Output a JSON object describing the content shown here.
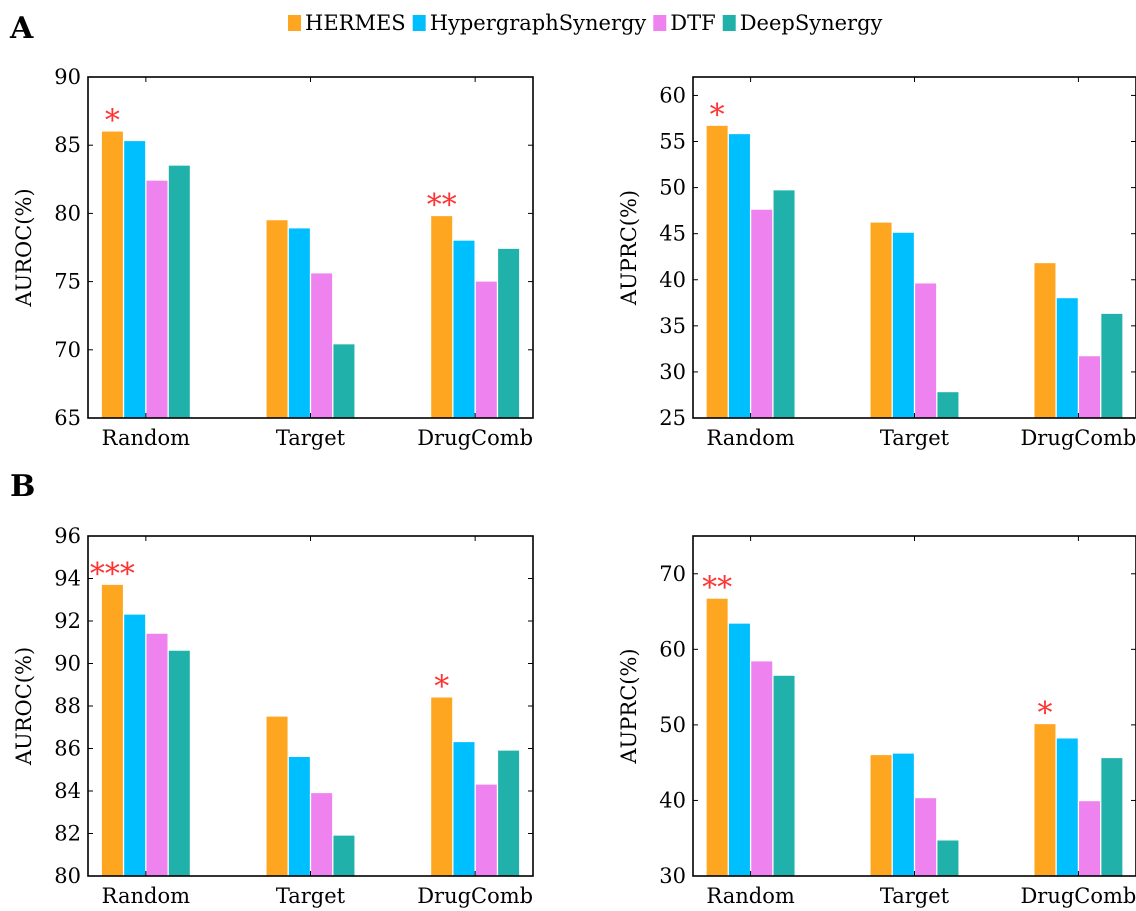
{
  "panels": [
    "A",
    "B"
  ],
  "legend": [
    {
      "label": "HERMES",
      "color": "#FFA620"
    },
    {
      "label": "HypergraphSynergy",
      "color": "#00BFFF"
    },
    {
      "label": "DTF",
      "color": "#EE82EE"
    },
    {
      "label": "DeepSynergy",
      "color": "#20B2AA"
    }
  ],
  "significance_color": "#FF3333",
  "chart_data": [
    {
      "type": "bar",
      "panel": "A",
      "ylabel": "AUROC(%)",
      "categories": [
        "Random",
        "Target",
        "DrugComb"
      ],
      "ylim": [
        65,
        90
      ],
      "yticks": [
        65,
        70,
        75,
        80,
        85,
        90
      ],
      "grid": false,
      "series": [
        {
          "name": "HERMES",
          "values": [
            86.0,
            79.5,
            79.8
          ]
        },
        {
          "name": "HypergraphSynergy",
          "values": [
            85.3,
            78.9,
            78.0
          ]
        },
        {
          "name": "DTF",
          "values": [
            82.4,
            75.6,
            75.0
          ]
        },
        {
          "name": "DeepSynergy",
          "values": [
            83.5,
            70.4,
            77.4
          ]
        }
      ],
      "annotations": [
        "*",
        "",
        "**"
      ]
    },
    {
      "type": "bar",
      "panel": "A",
      "ylabel": "AUPRC(%)",
      "categories": [
        "Random",
        "Target",
        "DrugComb"
      ],
      "ylim": [
        25,
        62
      ],
      "yticks": [
        25,
        30,
        35,
        40,
        45,
        50,
        55,
        60
      ],
      "grid": false,
      "series": [
        {
          "name": "HERMES",
          "values": [
            56.7,
            46.2,
            41.8
          ]
        },
        {
          "name": "HypergraphSynergy",
          "values": [
            55.8,
            45.1,
            38.0
          ]
        },
        {
          "name": "DTF",
          "values": [
            47.6,
            39.6,
            31.7
          ]
        },
        {
          "name": "DeepSynergy",
          "values": [
            49.7,
            27.8,
            36.3
          ]
        }
      ],
      "annotations": [
        "*",
        "",
        ""
      ]
    },
    {
      "type": "bar",
      "panel": "B",
      "ylabel": "AUROC(%)",
      "categories": [
        "Random",
        "Target",
        "DrugComb"
      ],
      "ylim": [
        80,
        96
      ],
      "yticks": [
        80,
        82,
        84,
        86,
        88,
        90,
        92,
        94,
        96
      ],
      "grid": false,
      "series": [
        {
          "name": "HERMES",
          "values": [
            93.7,
            87.5,
            88.4
          ]
        },
        {
          "name": "HypergraphSynergy",
          "values": [
            92.3,
            85.6,
            86.3
          ]
        },
        {
          "name": "DTF",
          "values": [
            91.4,
            83.9,
            84.3
          ]
        },
        {
          "name": "DeepSynergy",
          "values": [
            90.6,
            81.9,
            85.9
          ]
        }
      ],
      "annotations": [
        "***",
        "",
        "*"
      ]
    },
    {
      "type": "bar",
      "panel": "B",
      "ylabel": "AUPRC(%)",
      "categories": [
        "Random",
        "Target",
        "DrugComb"
      ],
      "ylim": [
        30,
        75
      ],
      "yticks": [
        30,
        40,
        50,
        60,
        70
      ],
      "grid": false,
      "series": [
        {
          "name": "HERMES",
          "values": [
            66.7,
            46.0,
            50.1
          ]
        },
        {
          "name": "HypergraphSynergy",
          "values": [
            63.4,
            46.2,
            48.2
          ]
        },
        {
          "name": "DTF",
          "values": [
            58.4,
            40.3,
            39.9
          ]
        },
        {
          "name": "DeepSynergy",
          "values": [
            56.5,
            34.7,
            45.6
          ]
        }
      ],
      "annotations": [
        "**",
        "",
        "*"
      ]
    }
  ]
}
